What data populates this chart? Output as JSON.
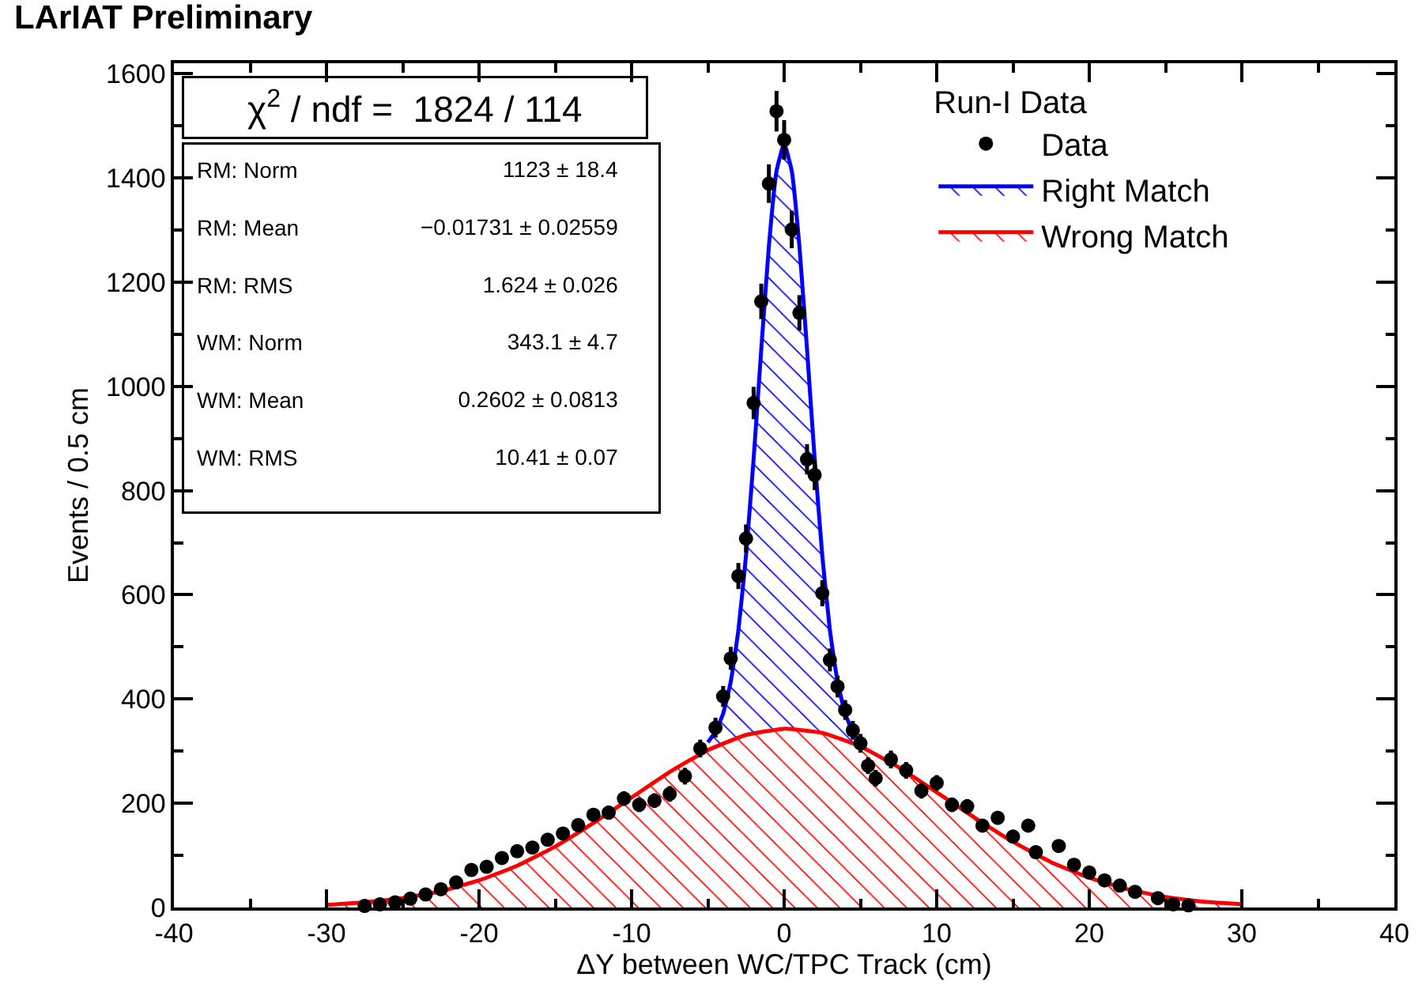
{
  "chart_data": {
    "type": "scatter",
    "title": "LArIAT Preliminary",
    "xlabel": "ΔY between WC/TPC Track (cm)",
    "ylabel": "Events / 0.5 cm",
    "legend_title": "Run-I Data",
    "xlim": [
      -40,
      40
    ],
    "xticks": [
      -40,
      -30,
      -20,
      -10,
      0,
      10,
      20,
      30,
      40
    ],
    "ylim": [
      0,
      1620
    ],
    "yticks": [
      0,
      200,
      400,
      600,
      800,
      1000,
      1200,
      1400,
      1600
    ],
    "legend": "top right",
    "annotations": [
      "χ$^{2}$ / ndf =  1824 / 114",
      "RM: Norm",
      "1123 ± 18.4",
      "RM: Mean",
      "−0.01731 ± 0.02559",
      "RM: RMS",
      "1.624 ± 0.026",
      "WM: Norm",
      "343.1 ± 4.7",
      "WM: Mean",
      "0.2602 ± 0.0813",
      "WM: RMS",
      "10.41 ± 0.07"
    ],
    "series": [
      {
        "name": "Data",
        "marker": "circle",
        "color": "#000000",
        "x": [
          -27.5,
          -26.5,
          -25.5,
          -24.5,
          -23.5,
          -22.5,
          -21.5,
          -20.5,
          -19.5,
          -18.5,
          -17.5,
          -16.5,
          -15.5,
          -14.5,
          -13.5,
          -12.5,
          -11.5,
          -10.5,
          -9.5,
          -8.5,
          -7.5,
          -6.5,
          -5.5,
          -4.5,
          -4,
          -3.5,
          -3,
          -2.5,
          -2,
          -1.5,
          -1,
          -0.5,
          0,
          0.5,
          1,
          1.5,
          2,
          2.5,
          3,
          3.5,
          4,
          4.5,
          5,
          5.5,
          6,
          7,
          8,
          9,
          10,
          11,
          12,
          13,
          14,
          15,
          16,
          16.5,
          18,
          19,
          20,
          21,
          22,
          23,
          24.5,
          25.5,
          26.5
        ],
        "values": [
          3,
          6,
          10,
          17,
          25,
          35,
          48,
          72,
          78,
          95,
          108,
          115,
          130,
          142,
          158,
          178,
          182,
          209,
          197,
          205,
          218,
          252,
          305,
          345,
          405,
          478,
          636,
          708,
          968,
          1163,
          1389,
          1528,
          1473,
          1301,
          1141,
          860,
          830,
          603,
          475,
          424,
          379,
          340,
          315,
          272,
          248,
          284,
          263,
          224,
          239,
          197,
          194,
          157,
          172,
          136,
          157,
          106,
          118,
          82,
          67,
          52,
          42,
          30,
          18,
          6,
          4
        ],
        "errors": [
          2,
          3,
          3,
          4,
          5,
          6,
          7,
          8,
          9,
          10,
          10,
          11,
          11,
          12,
          13,
          13,
          13,
          14,
          14,
          14,
          15,
          16,
          17,
          19,
          20,
          22,
          25,
          27,
          31,
          34,
          37,
          39,
          38,
          36,
          34,
          29,
          29,
          25,
          22,
          21,
          19,
          18,
          18,
          16,
          16,
          17,
          16,
          15,
          15,
          14,
          14,
          13,
          13,
          12,
          13,
          10,
          11,
          9,
          8,
          7,
          6,
          5,
          4,
          3,
          2
        ]
      },
      {
        "name": "Right Match",
        "type": "area",
        "color": "#0000ff",
        "x": [
          -5,
          -4.5,
          -4,
          -3.5,
          -3,
          -2.5,
          -2,
          -1.5,
          -1,
          -0.5,
          0,
          0.5,
          1,
          1.5,
          2,
          2.5,
          3,
          3.5,
          4,
          4.5,
          5
        ],
        "values": [
          317,
          337,
          372,
          433,
          532,
          675,
          861,
          1071,
          1269,
          1413,
          1466,
          1413,
          1269,
          1071,
          861,
          675,
          532,
          433,
          372,
          337,
          317
        ]
      },
      {
        "name": "Wrong Match",
        "type": "area",
        "color": "#ff0000",
        "x": [
          -30,
          -27.5,
          -25,
          -22.5,
          -20,
          -17.5,
          -15,
          -12.5,
          -10,
          -7.5,
          -5,
          -2.5,
          0,
          2.5,
          5,
          7.5,
          10,
          12.5,
          15,
          17.5,
          20,
          22.5,
          25,
          27.5,
          30
        ],
        "values": [
          5,
          10,
          18,
          31,
          52,
          80,
          117,
          162,
          211,
          260,
          302,
          331,
          343,
          335,
          309,
          269,
          221,
          172,
          126,
          87,
          57,
          35,
          20,
          11,
          6
        ]
      }
    ]
  }
}
